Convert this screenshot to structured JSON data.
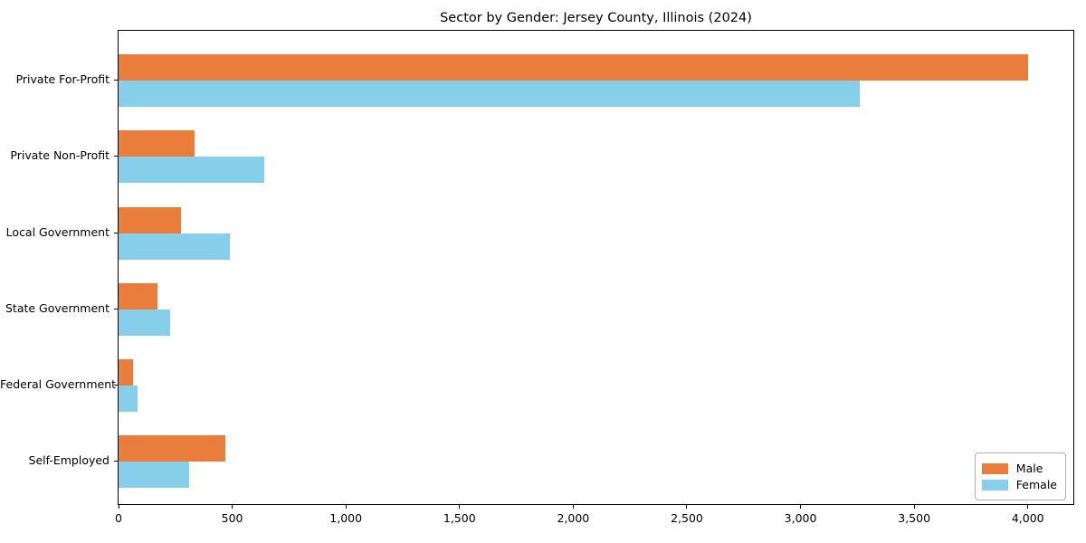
{
  "chart_data": {
    "type": "bar",
    "orientation": "horizontal",
    "title": "Sector by Gender: Jersey County, Illinois (2024)",
    "xlabel": "",
    "ylabel": "",
    "categories": [
      "Private For-Profit",
      "Private Non-Profit",
      "Local Government",
      "State Government",
      "Federal Government",
      "Self-Employed"
    ],
    "series": [
      {
        "name": "Male",
        "color": "#e87d3c",
        "values": [
          4000,
          335,
          275,
          170,
          65,
          470
        ]
      },
      {
        "name": "Female",
        "color": "#87ceeb",
        "values": [
          3260,
          640,
          490,
          225,
          85,
          310
        ]
      }
    ],
    "xlim": [
      0,
      4200
    ],
    "xticks": [
      0,
      500,
      1000,
      1500,
      2000,
      2500,
      3000,
      3500,
      4000
    ],
    "xtick_labels": [
      "0",
      "500",
      "1,000",
      "1,500",
      "2,000",
      "2,500",
      "3,000",
      "3,500",
      "4,000"
    ],
    "grid": false,
    "legend": {
      "position": "lower right",
      "entries": [
        "Male",
        "Female"
      ]
    }
  }
}
